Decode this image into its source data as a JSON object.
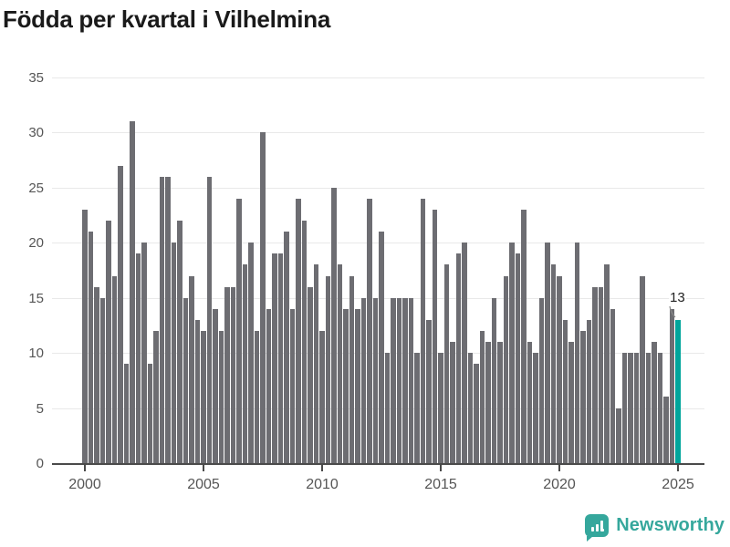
{
  "title": "Födda per kvartal i Vilhelmina",
  "annotation": {
    "label": "13"
  },
  "branding": {
    "logo_text": "Newsworthy",
    "logo_icon": "bar-chart-speech-bubble",
    "logo_color": "#35a79c"
  },
  "chart_data": {
    "type": "bar",
    "title": "Födda per kvartal i Vilhelmina",
    "xlabel": "",
    "ylabel": "",
    "x_unit": "quarter",
    "x_start": "2000 Q1",
    "x_end": "2025 Q1",
    "ylim": [
      0,
      35
    ],
    "grid": true,
    "yticks": [
      0,
      5,
      10,
      15,
      20,
      25,
      30,
      35
    ],
    "xticks": [
      {
        "label": "2000",
        "year": 2000
      },
      {
        "label": "2005",
        "year": 2005
      },
      {
        "label": "2010",
        "year": 2010
      },
      {
        "label": "2015",
        "year": 2015
      },
      {
        "label": "2020",
        "year": 2020
      },
      {
        "label": "2025",
        "year": 2025
      }
    ],
    "bar_color": "#6d6d72",
    "highlight_color": "#00a59b",
    "highlight_last": true,
    "last_value_label": "13",
    "values": [
      23,
      21,
      16,
      15,
      22,
      17,
      27,
      9,
      31,
      19,
      20,
      9,
      12,
      26,
      26,
      20,
      22,
      15,
      17,
      13,
      12,
      26,
      14,
      12,
      16,
      16,
      24,
      18,
      20,
      12,
      30,
      14,
      19,
      19,
      21,
      14,
      24,
      22,
      16,
      18,
      12,
      17,
      25,
      18,
      14,
      17,
      14,
      15,
      24,
      15,
      21,
      10,
      15,
      15,
      15,
      15,
      10,
      24,
      13,
      23,
      10,
      18,
      11,
      19,
      20,
      10,
      9,
      12,
      11,
      15,
      11,
      17,
      20,
      19,
      23,
      11,
      10,
      15,
      20,
      18,
      17,
      13,
      11,
      20,
      12,
      13,
      16,
      16,
      18,
      14,
      5,
      10,
      10,
      10,
      17,
      10,
      11,
      10,
      6,
      14,
      13
    ]
  }
}
